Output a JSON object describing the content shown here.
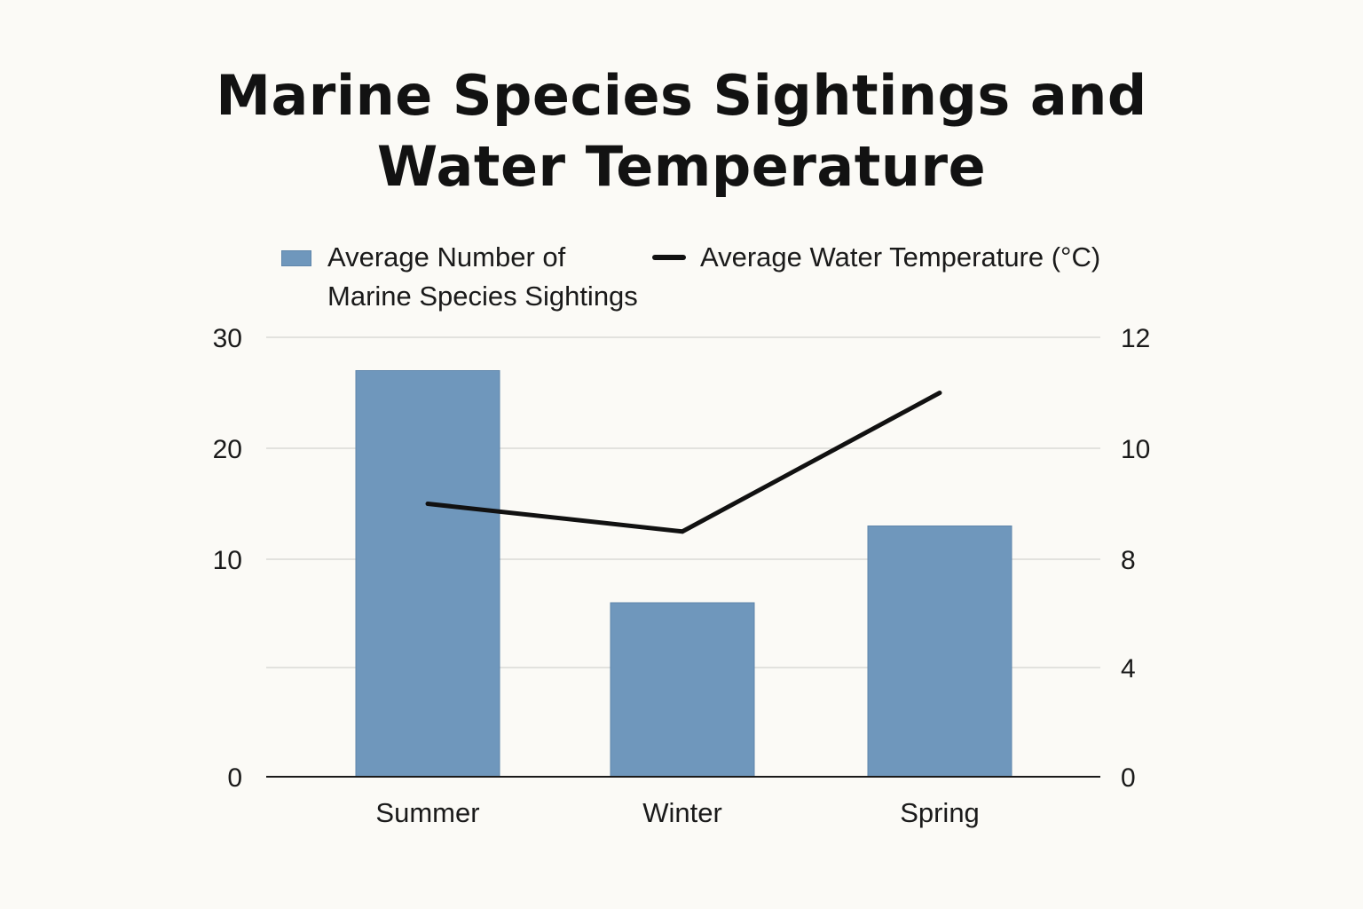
{
  "chart_data": {
    "type": "bar",
    "title": "Marine Species Sightings and Water Temperature",
    "title_lines": [
      "Marine Species Sightings and",
      "Water Temperature"
    ],
    "categories": [
      "Summer",
      "Winter",
      "Spring"
    ],
    "series": [
      {
        "name": "Average Number of Marine Species Sightings",
        "name_lines": [
          "Average Number of",
          "Marine Species Sightings"
        ],
        "type": "bar",
        "axis": "left",
        "color": "#6f97bc",
        "values": [
          27,
          8,
          13
        ]
      },
      {
        "name": "Average Water Temperature (°C)",
        "type": "line",
        "axis": "right",
        "color": "#111111",
        "values": [
          9,
          8.5,
          11
        ]
      }
    ],
    "y_left": {
      "ylim": [
        0,
        30
      ],
      "ticks": [
        0,
        10,
        20,
        30
      ],
      "tick_labels": [
        "0",
        "10",
        "20",
        "30"
      ]
    },
    "y_right": {
      "ticks": [
        0,
        4,
        8,
        10,
        12
      ],
      "tick_labels": [
        "0",
        "4",
        "8",
        "10",
        "12"
      ]
    },
    "xlabel": "",
    "ylabel": "",
    "grid": true,
    "legend_position": "top"
  }
}
